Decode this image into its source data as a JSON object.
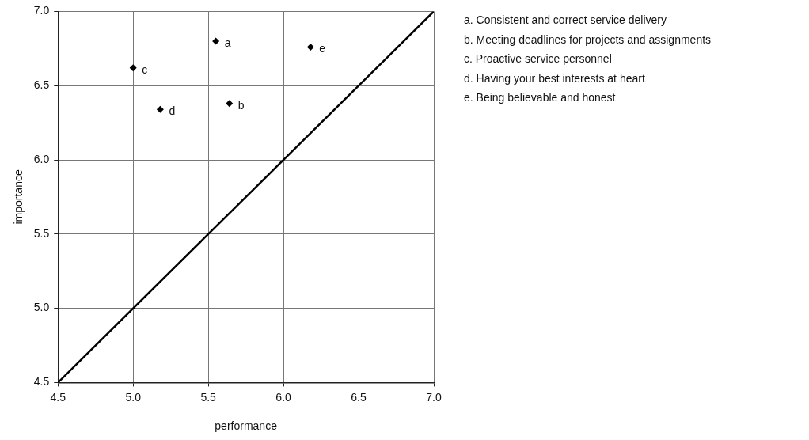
{
  "chart_data": {
    "type": "scatter",
    "xlabel": "performance",
    "ylabel": "importance",
    "series": [
      {
        "color": "#000000",
        "x": [
          5.55,
          5.64,
          5.0,
          5.18,
          6.18
        ],
        "values": [
          6.8,
          6.38,
          6.62,
          6.34,
          6.76
        ],
        "marker": "diamond"
      },
      {
        "type": "line",
        "color": "#000000",
        "x": [
          4.5,
          7.0
        ],
        "values": [
          4.5,
          7.0
        ],
        "marker": "none"
      }
    ],
    "xlim": [
      4.5,
      7.0
    ],
    "xticks": [
      {
        "value": 4.5,
        "label": "4.5"
      },
      {
        "value": 5.0,
        "label": "5.0"
      },
      {
        "value": 5.5,
        "label": "5.5"
      },
      {
        "value": 6.0,
        "label": "6.0"
      },
      {
        "value": 6.5,
        "label": "6.5"
      },
      {
        "value": 7.0,
        "label": "7.0"
      }
    ],
    "ylim": [
      4.5,
      7.0
    ],
    "yticks": [
      {
        "value": 4.5,
        "label": "4.5"
      },
      {
        "value": 5.0,
        "label": "5.0"
      },
      {
        "value": 5.5,
        "label": "5.5"
      },
      {
        "value": 6.0,
        "label": "6.0"
      },
      {
        "value": 6.5,
        "label": "6.5"
      },
      {
        "value": 7.0,
        "label": "7.0"
      }
    ],
    "grid": true,
    "legend": false,
    "annotations": [
      {
        "text": "a",
        "x": 5.55,
        "y": 6.8
      },
      {
        "text": "b",
        "x": 5.64,
        "y": 6.38
      },
      {
        "text": "c",
        "x": 5.0,
        "y": 6.62
      },
      {
        "text": "d",
        "x": 5.18,
        "y": 6.34
      },
      {
        "text": "e",
        "x": 6.18,
        "y": 6.76
      },
      "a. Consistent and correct service delivery",
      "b. Meeting deadlines for projects and assignments",
      "c. Proactive service personnel",
      "d. Having your best interests at heart",
      "e. Being believable and honest"
    ]
  }
}
